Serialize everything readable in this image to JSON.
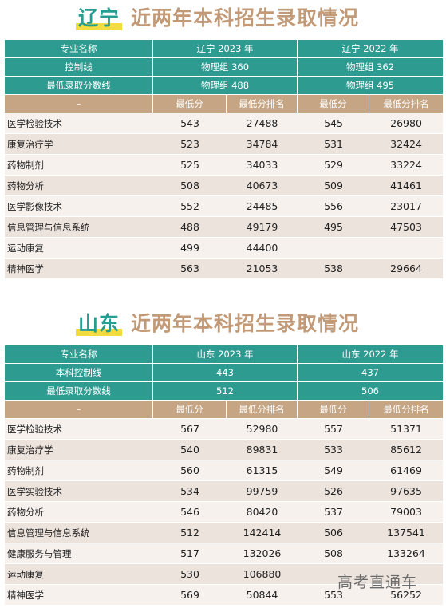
{
  "liaoning": {
    "title_prov": "辽宁",
    "title_rest": "近两年本科招生录取情况",
    "h_major": "专业名称",
    "h_y1": "辽宁 2023 年",
    "h_y2": "辽宁 2022 年",
    "r2_label": "控制线",
    "r2_y1": "物理组 360",
    "r2_y2": "物理组 362",
    "r3_label": "最低录取分数线",
    "r3_y1": "物理组 488",
    "r3_y2": "物理组 495",
    "sub_dash": "–",
    "sub_min": "最低分",
    "sub_rank": "最低分排名",
    "rows": [
      {
        "name": "医学检验技术",
        "s1": "543",
        "r1": "27488",
        "s2": "545",
        "r2": "26980"
      },
      {
        "name": "康复治疗学",
        "s1": "523",
        "r1": "34784",
        "s2": "531",
        "r2": "32424"
      },
      {
        "name": "药物制剂",
        "s1": "525",
        "r1": "34033",
        "s2": "529",
        "r2": "33224"
      },
      {
        "name": "药物分析",
        "s1": "508",
        "r1": "40673",
        "s2": "509",
        "r2": "41461"
      },
      {
        "name": "医学影像技术",
        "s1": "552",
        "r1": "24485",
        "s2": "556",
        "r2": "23017"
      },
      {
        "name": "信息管理与信息系统",
        "s1": "488",
        "r1": "49179",
        "s2": "495",
        "r2": "47503"
      },
      {
        "name": "运动康复",
        "s1": "499",
        "r1": "44400",
        "s2": "",
        "r2": ""
      },
      {
        "name": "精神医学",
        "s1": "563",
        "r1": "21053",
        "s2": "538",
        "r2": "29664"
      }
    ]
  },
  "shandong": {
    "title_prov": "山东",
    "title_rest": "近两年本科招生录取情况",
    "h_major": "专业名称",
    "h_y1": "山东 2023 年",
    "h_y2": "山东 2022 年",
    "r2_label": "本科控制线",
    "r2_y1": "443",
    "r2_y2": "437",
    "r3_label": "最低录取分数线",
    "r3_y1": "512",
    "r3_y2": "506",
    "sub_dash": "–",
    "sub_min": "最低分",
    "sub_rank": "最低分排名",
    "rows": [
      {
        "name": "医学检验技术",
        "s1": "567",
        "r1": "52980",
        "s2": "557",
        "r2": "51371"
      },
      {
        "name": "康复治疗学",
        "s1": "540",
        "r1": "89831",
        "s2": "533",
        "r2": "85612"
      },
      {
        "name": "药物制剂",
        "s1": "560",
        "r1": "61315",
        "s2": "549",
        "r2": "61469"
      },
      {
        "name": "医学实验技术",
        "s1": "534",
        "r1": "99759",
        "s2": "526",
        "r2": "97635"
      },
      {
        "name": "药物分析",
        "s1": "546",
        "r1": "80420",
        "s2": "537",
        "r2": "79003"
      },
      {
        "name": "信息管理与信息系统",
        "s1": "512",
        "r1": "142414",
        "s2": "506",
        "r2": "137541"
      },
      {
        "name": "健康服务与管理",
        "s1": "517",
        "r1": "132026",
        "s2": "508",
        "r2": "133264"
      },
      {
        "name": "运动康复",
        "s1": "530",
        "r1": "106880",
        "s2": "",
        "r2": ""
      },
      {
        "name": "精神医学",
        "s1": "569",
        "r1": "50844",
        "s2": "553",
        "r2": "56252"
      }
    ]
  },
  "watermark": "高考直通车"
}
